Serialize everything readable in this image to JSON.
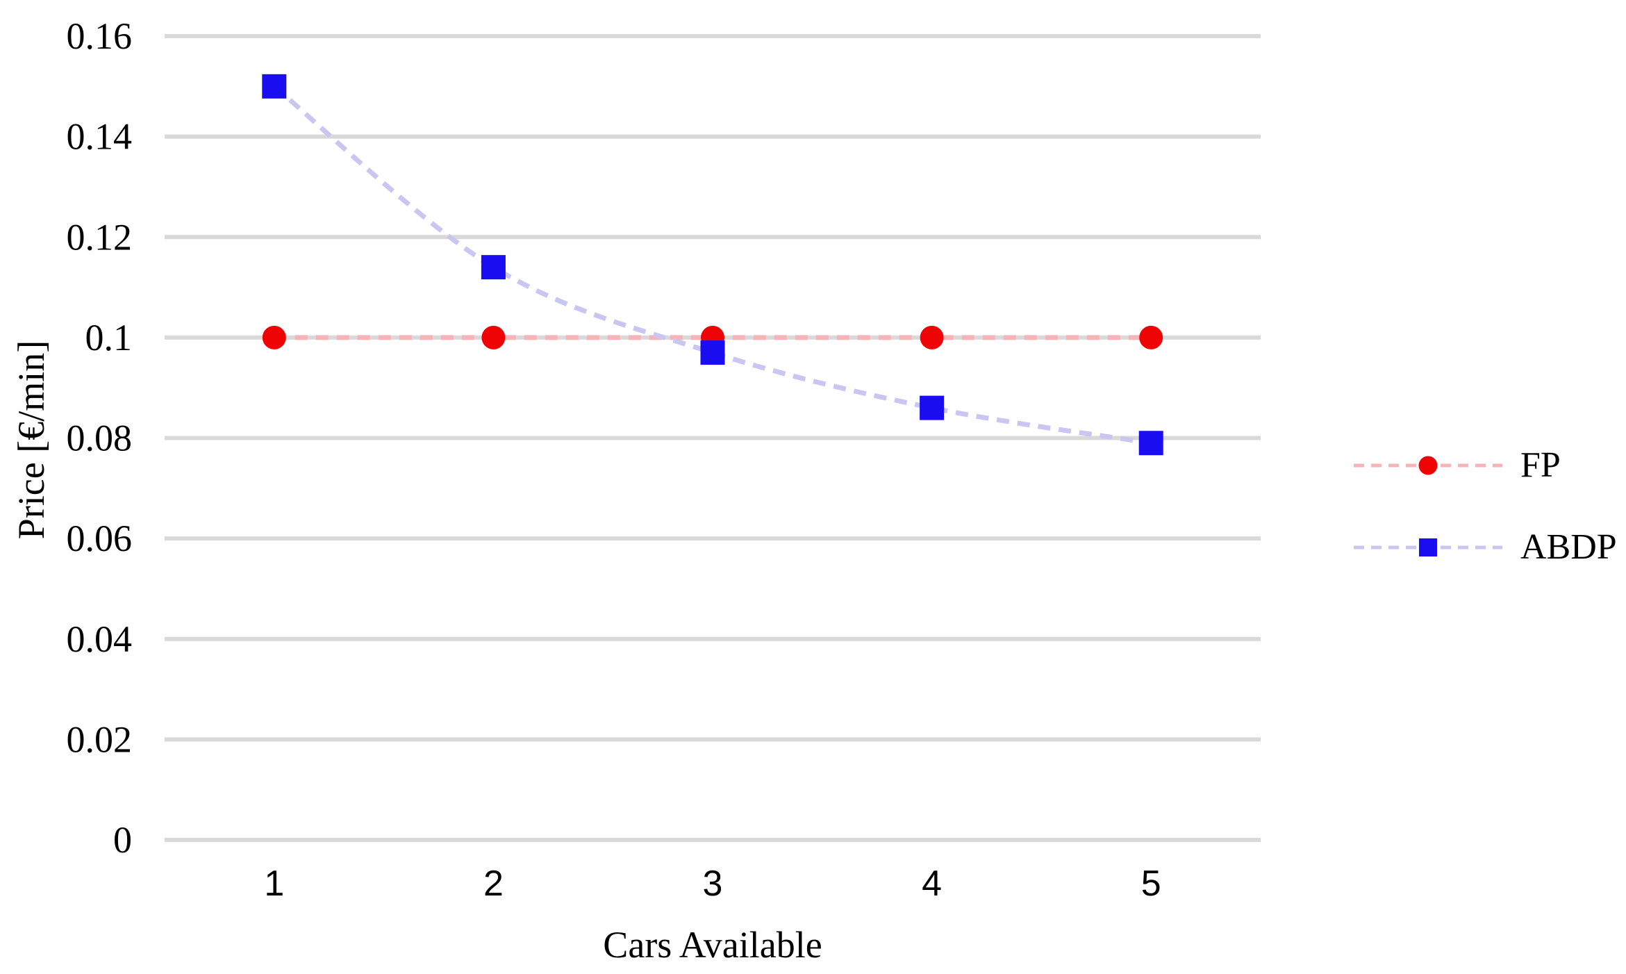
{
  "chart_data": {
    "type": "line",
    "title": "",
    "xlabel": "Cars Available",
    "ylabel": "Price [€/min]",
    "x": [
      1,
      2,
      3,
      4,
      5
    ],
    "x_tick_labels": [
      "1",
      "2",
      "3",
      "4",
      "5"
    ],
    "ylim": [
      0,
      0.16
    ],
    "yticks": [
      0,
      0.02,
      0.04,
      0.06,
      0.08,
      0.1,
      0.12,
      0.14,
      0.16
    ],
    "ytick_labels": [
      "0",
      "0.02",
      "0.04",
      "0.06",
      "0.08",
      "0.1",
      "0.12",
      "0.14",
      "0.16"
    ],
    "grid": "horizontal",
    "grid_color": "#d9d9d9",
    "text_color": "#000000",
    "legend_position": "right",
    "series": [
      {
        "name": "FP",
        "values": [
          0.1,
          0.1,
          0.1,
          0.1,
          0.1
        ],
        "marker": "circle",
        "marker_color": "#ee0404",
        "line_color": "#f5b4b8",
        "line_style": "dashed"
      },
      {
        "name": "ABDP",
        "values": [
          0.15,
          0.114,
          0.097,
          0.086,
          0.079
        ],
        "marker": "square",
        "marker_color": "#1a0df0",
        "line_color": "#c9c7f1",
        "line_style": "dashed"
      }
    ]
  }
}
